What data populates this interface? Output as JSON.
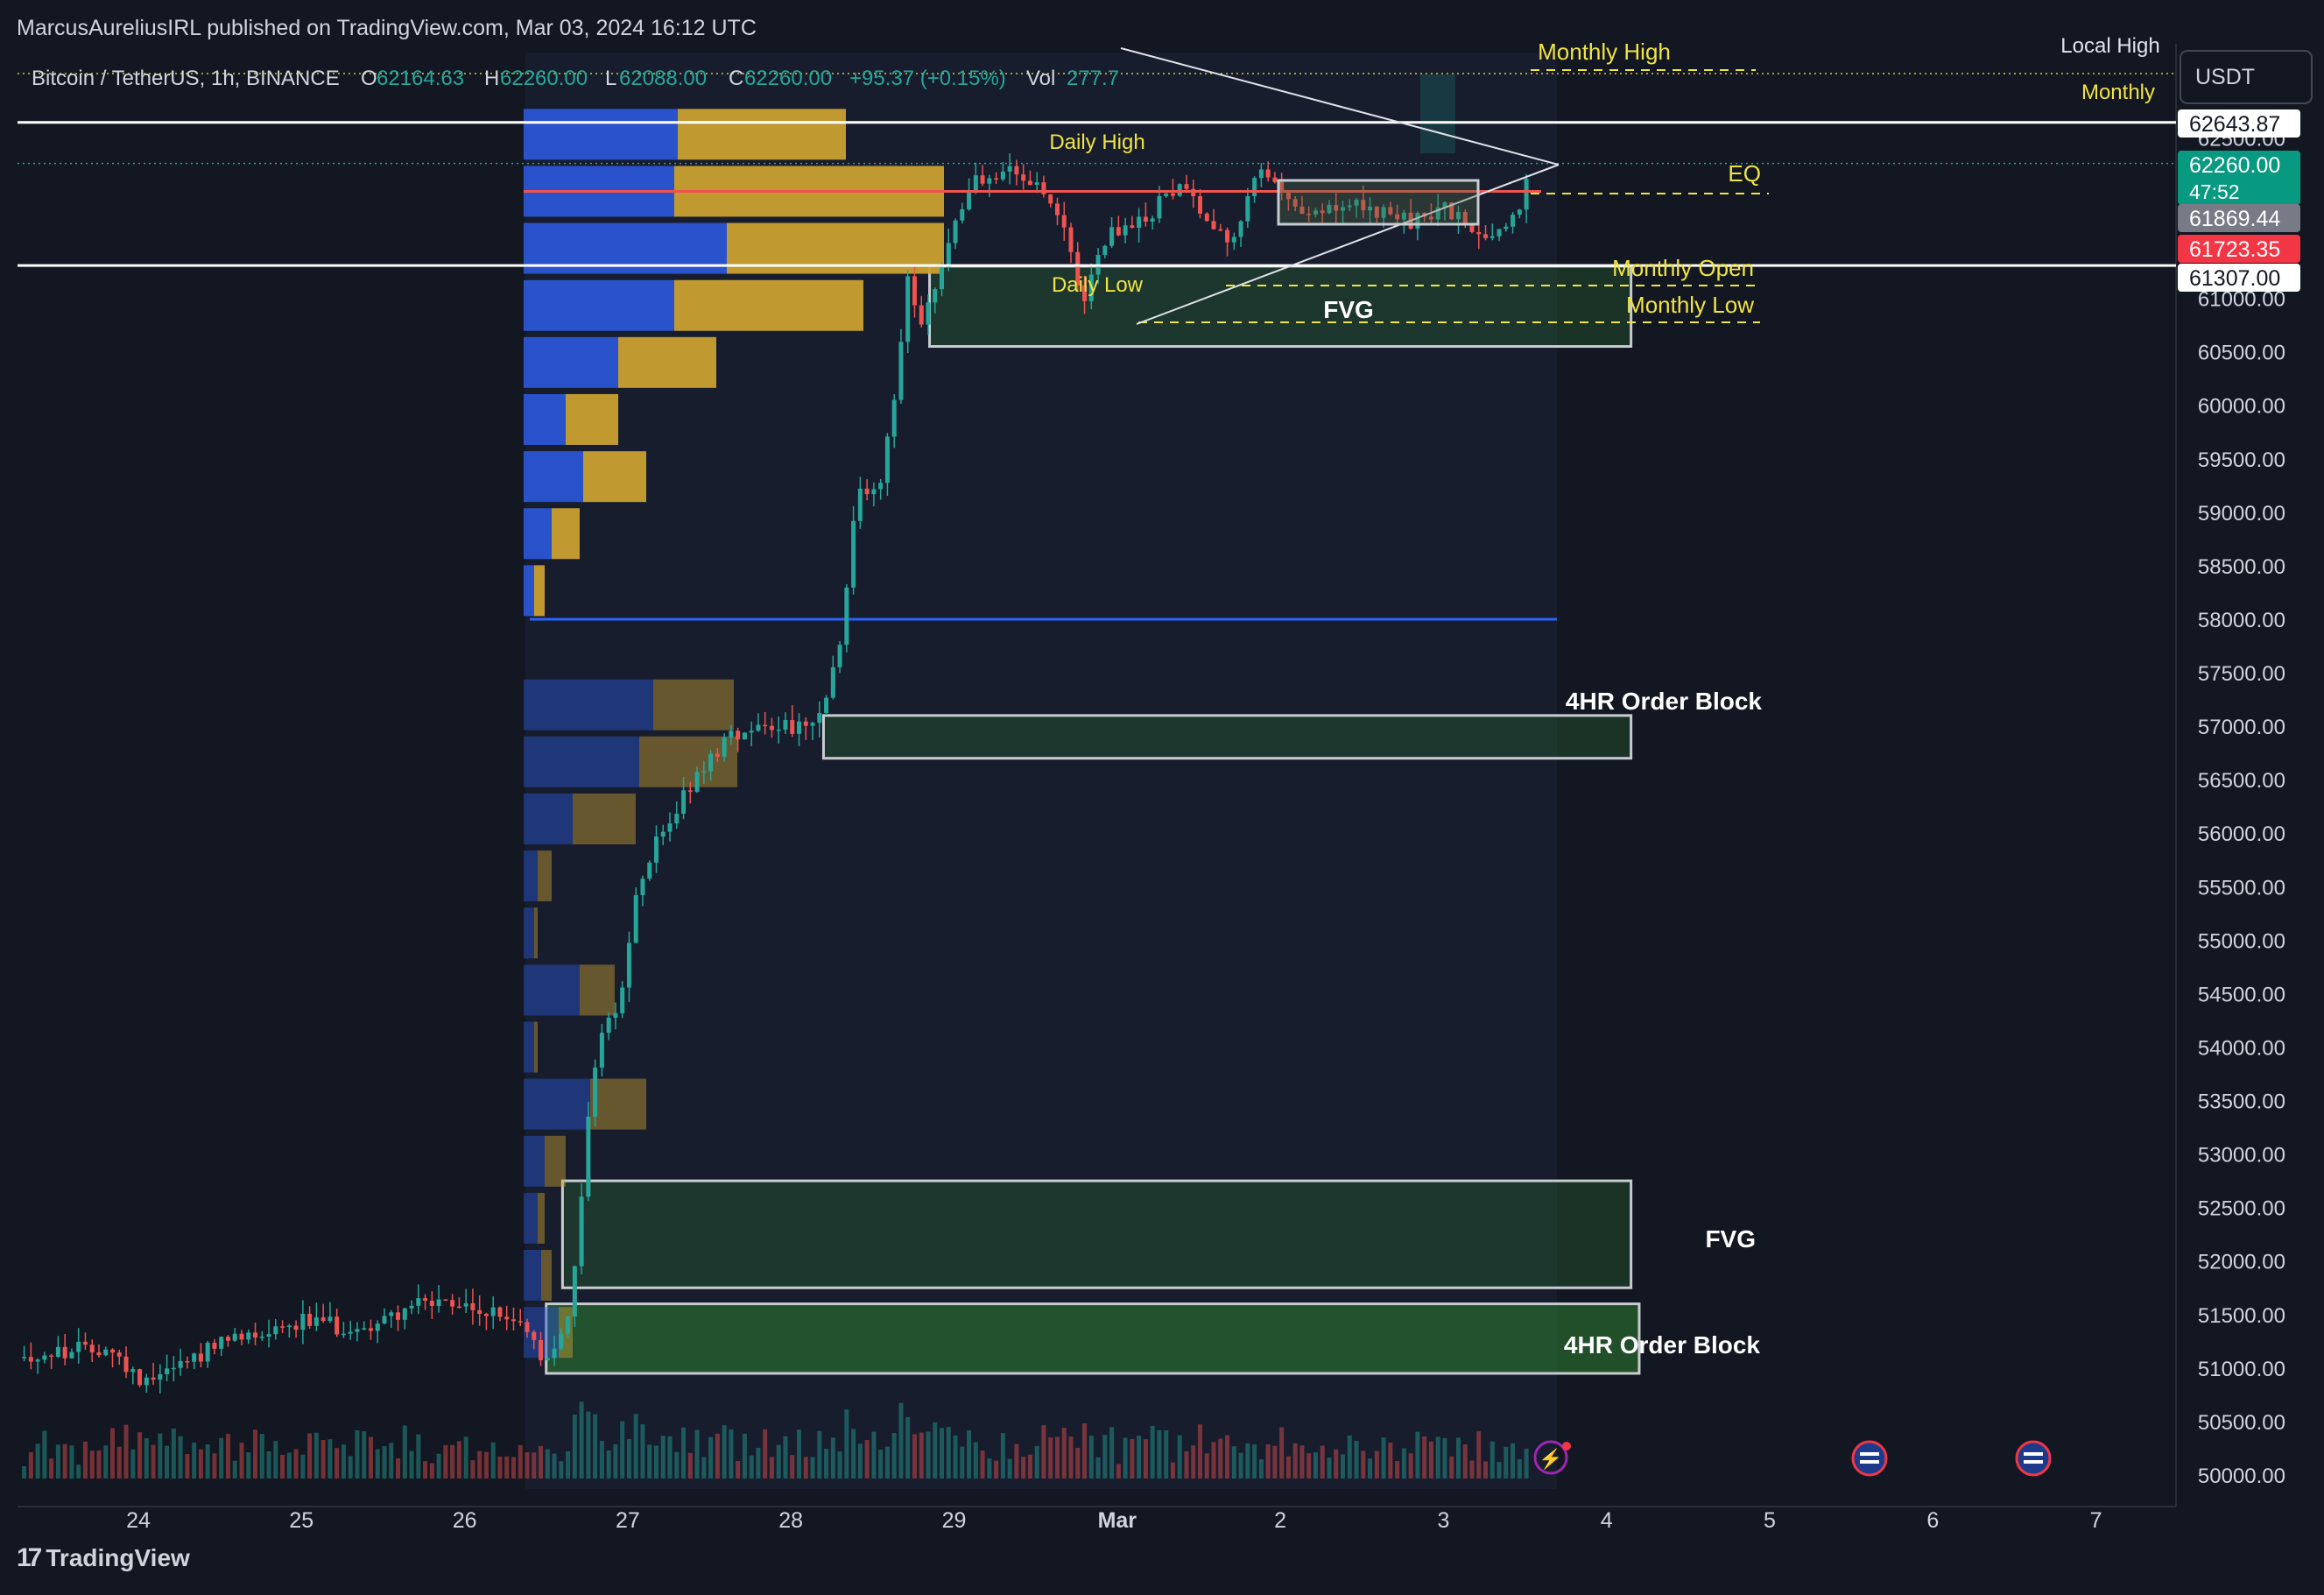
{
  "header": {
    "published": "MarcusAureliusIRL published on TradingView.com, Mar 03, 2024 16:12 UTC"
  },
  "legend": {
    "symbol": "Bitcoin / TetherUS, 1h, BINANCE",
    "o_label": "O",
    "o_value": "62164.63",
    "h_label": "H",
    "h_value": "62260.00",
    "l_label": "L",
    "l_value": "62088.00",
    "c_label": "C",
    "c_value": "62260.00",
    "change": "+95.37 (+0.15%)",
    "vol_label": "Vol",
    "vol_value": "277.7"
  },
  "brand": {
    "name": "TradingView"
  },
  "currency": "USDT",
  "price_tags": [
    {
      "text": "62643.87",
      "price": 62643.87,
      "bg": "#ffffff",
      "fg": "#131722"
    },
    {
      "text": "62260.00",
      "sub": "47:52",
      "price": 62260.0,
      "bg": "#089981",
      "fg": "#ffffff"
    },
    {
      "text": "61869.44",
      "price": 61869.44,
      "bg": "#787b86",
      "fg": "#ffffff"
    },
    {
      "text": "61723.35",
      "price": 61723.35,
      "bg": "#f23645",
      "fg": "#ffffff"
    },
    {
      "text": "61307.00",
      "price": 61307.0,
      "bg": "#ffffff",
      "fg": "#131722"
    }
  ],
  "colors": {
    "background": "#131722",
    "up": "#26a69a",
    "down": "#ef5350",
    "annotation_yellow": "#f0e442",
    "zone_green": "#2e7d32",
    "level_white": "#ffffff",
    "poc_blue": "#2962ff",
    "vp_blue": "#2b56d4",
    "vp_gold": "#c9a032",
    "eq_red": "#ef5350"
  },
  "chart_data": {
    "type": "candlestick",
    "symbol": "Bitcoin / TetherUS",
    "interval": "1h",
    "exchange": "BINANCE",
    "ylim": [
      50000,
      62800
    ],
    "y_ticks": [
      {
        "value": 50000,
        "label": "50000.00"
      },
      {
        "value": 50500,
        "label": "50500.00"
      },
      {
        "value": 51000,
        "label": "51000.00"
      },
      {
        "value": 51500,
        "label": "51500.00"
      },
      {
        "value": 52000,
        "label": "52000.00"
      },
      {
        "value": 52500,
        "label": "52500.00"
      },
      {
        "value": 53000,
        "label": "53000.00"
      },
      {
        "value": 53500,
        "label": "53500.00"
      },
      {
        "value": 54000,
        "label": "54000.00"
      },
      {
        "value": 54500,
        "label": "54500.00"
      },
      {
        "value": 55000,
        "label": "55000.00"
      },
      {
        "value": 55500,
        "label": "55500.00"
      },
      {
        "value": 56000,
        "label": "56000.00"
      },
      {
        "value": 56500,
        "label": "56500.00"
      },
      {
        "value": 57000,
        "label": "57000.00"
      },
      {
        "value": 57500,
        "label": "57500.00"
      },
      {
        "value": 58000,
        "label": "58000.00"
      },
      {
        "value": 58500,
        "label": "58500.00"
      },
      {
        "value": 59000,
        "label": "59000.00"
      },
      {
        "value": 59500,
        "label": "59500.00"
      },
      {
        "value": 60000,
        "label": "60000.00"
      },
      {
        "value": 60500,
        "label": "60500.00"
      },
      {
        "value": 61000,
        "label": "61000.00"
      },
      {
        "value": 62500,
        "label": "62500.00"
      }
    ],
    "x_ticks": [
      {
        "day": 0,
        "label": "24"
      },
      {
        "day": 1,
        "label": "25"
      },
      {
        "day": 2,
        "label": "26"
      },
      {
        "day": 3,
        "label": "27"
      },
      {
        "day": 4,
        "label": "28"
      },
      {
        "day": 5,
        "label": "29"
      },
      {
        "day": 6,
        "label": "Mar"
      },
      {
        "day": 7,
        "label": "2"
      },
      {
        "day": 8,
        "label": "3"
      },
      {
        "day": 9,
        "label": "4"
      },
      {
        "day": 10,
        "label": "5"
      },
      {
        "day": 11,
        "label": "6"
      },
      {
        "day": 12,
        "label": "7"
      }
    ],
    "price_path": [
      [
        -0.7,
        51100
      ],
      [
        -0.2,
        51200
      ],
      [
        0.0,
        50900
      ],
      [
        0.25,
        51050
      ],
      [
        0.55,
        51250
      ],
      [
        0.75,
        51350
      ],
      [
        1.0,
        51450
      ],
      [
        1.35,
        51350
      ],
      [
        1.7,
        51600
      ],
      [
        2.05,
        51550
      ],
      [
        2.3,
        51450
      ],
      [
        2.45,
        51200
      ],
      [
        2.5,
        51000
      ],
      [
        2.6,
        51300
      ],
      [
        2.65,
        51600
      ],
      [
        2.75,
        53200
      ],
      [
        2.82,
        54100
      ],
      [
        2.95,
        54400
      ],
      [
        3.05,
        55400
      ],
      [
        3.2,
        56000
      ],
      [
        3.35,
        56350
      ],
      [
        3.6,
        56900
      ],
      [
        3.85,
        57050
      ],
      [
        4.15,
        56950
      ],
      [
        4.3,
        57700
      ],
      [
        4.4,
        59200
      ],
      [
        4.55,
        59200
      ],
      [
        4.65,
        60300
      ],
      [
        4.72,
        61200
      ],
      [
        4.8,
        60800
      ],
      [
        4.95,
        61400
      ],
      [
        5.1,
        62100
      ],
      [
        5.3,
        62200
      ],
      [
        5.5,
        62050
      ],
      [
        5.65,
        61700
      ],
      [
        5.8,
        61000
      ],
      [
        5.95,
        61600
      ],
      [
        6.15,
        61700
      ],
      [
        6.35,
        62050
      ],
      [
        6.55,
        61800
      ],
      [
        6.7,
        61500
      ],
      [
        6.85,
        62200
      ],
      [
        7.05,
        61900
      ],
      [
        7.25,
        61800
      ],
      [
        7.5,
        61850
      ],
      [
        7.8,
        61700
      ],
      [
        8.0,
        61850
      ],
      [
        8.15,
        61650
      ],
      [
        8.3,
        61600
      ],
      [
        8.45,
        61800
      ],
      [
        8.55,
        62260
      ]
    ],
    "volume_profile_upper": [
      {
        "price": 62533,
        "buy": 0.44,
        "sell": 0.48
      },
      {
        "price": 62000,
        "buy": 0.43,
        "sell": 0.77
      },
      {
        "price": 61467,
        "buy": 0.58,
        "sell": 0.62
      },
      {
        "price": 60933,
        "buy": 0.43,
        "sell": 0.54
      },
      {
        "price": 60400,
        "buy": 0.27,
        "sell": 0.28
      },
      {
        "price": 59867,
        "buy": 0.12,
        "sell": 0.15
      },
      {
        "price": 59333,
        "buy": 0.17,
        "sell": 0.18
      },
      {
        "price": 58800,
        "buy": 0.08,
        "sell": 0.08
      },
      {
        "price": 58267,
        "buy": 0.03,
        "sell": 0.03
      }
    ],
    "volume_profile_lower": [
      {
        "price": 57200,
        "buy": 0.37,
        "sell": 0.23
      },
      {
        "price": 56667,
        "buy": 0.33,
        "sell": 0.28
      },
      {
        "price": 56133,
        "buy": 0.14,
        "sell": 0.18
      },
      {
        "price": 55600,
        "buy": 0.04,
        "sell": 0.04
      },
      {
        "price": 55067,
        "buy": 0.03,
        "sell": 0.01
      },
      {
        "price": 54533,
        "buy": 0.16,
        "sell": 0.1
      },
      {
        "price": 54000,
        "buy": 0.03,
        "sell": 0.01
      },
      {
        "price": 53467,
        "buy": 0.19,
        "sell": 0.16
      },
      {
        "price": 52933,
        "buy": 0.06,
        "sell": 0.06
      },
      {
        "price": 52400,
        "buy": 0.04,
        "sell": 0.02
      },
      {
        "price": 51867,
        "buy": 0.05,
        "sell": 0.03
      },
      {
        "price": 51333,
        "buy": 0.1,
        "sell": 0.04
      }
    ],
    "levels": {
      "white_upper": 62643.87,
      "white_lower": 61307.0,
      "current_price": 62260.0,
      "eq": 62000,
      "poc_blue": 58000
    },
    "zones": [
      {
        "label": "FVG",
        "x0": 4.85,
        "x1": 9.15,
        "y0": 60550,
        "y1": 61300
      },
      {
        "label": "4HR Order Block",
        "x0": 4.2,
        "x1": 9.15,
        "y0": 56700,
        "y1": 57100
      },
      {
        "label": "FVG",
        "x0": 2.6,
        "x1": 9.15,
        "y0": 51750,
        "y1": 52750
      },
      {
        "label": "4HR Order Block",
        "x0": 2.5,
        "x1": 9.2,
        "y0": 50950,
        "y1": 51600
      }
    ],
    "annotations": {
      "monthly_high": "Monthly High",
      "local_high": "Local High",
      "monthly": "Monthly",
      "daily_high": "Daily High",
      "eq": "EQ",
      "monthly_open": "Monthly Open",
      "daily_low": "Daily Low",
      "monthly_low": "Monthly Low"
    },
    "grid": false,
    "legend": "top-left"
  }
}
